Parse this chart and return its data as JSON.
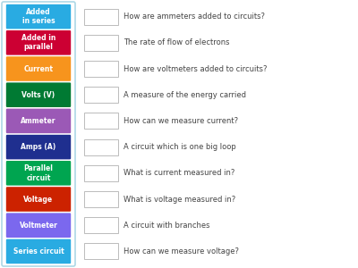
{
  "labels": [
    {
      "text": "Added\nin series",
      "color": "#29ABE2"
    },
    {
      "text": "Added in\nparallel",
      "color": "#CC0033"
    },
    {
      "text": "Current",
      "color": "#F7941D"
    },
    {
      "text": "Volts (V)",
      "color": "#007A33"
    },
    {
      "text": "Ammeter",
      "color": "#9B59B6"
    },
    {
      "text": "Amps (A)",
      "color": "#1F2F8F"
    },
    {
      "text": "Parallel\ncircuit",
      "color": "#00A550"
    },
    {
      "text": "Voltage",
      "color": "#CC2200"
    },
    {
      "text": "Voltmeter",
      "color": "#7B68EE"
    },
    {
      "text": "Series circuit",
      "color": "#29ABE2"
    }
  ],
  "questions": [
    "How are ammeters added to circuits?",
    "The rate of flow of electrons",
    "How are voltmeters added to circuits?",
    "A measure of the energy carried",
    "How can we measure current?",
    "A circuit which is one big loop",
    "What is current measured in?",
    "What is voltage measured in?",
    "A circuit with branches",
    "How can we measure voltage?"
  ],
  "background_color": "#FFFFFF",
  "outer_border_color": "#ADD8E6",
  "label_text_color": "#FFFFFF",
  "question_text_color": "#444444",
  "answer_box_color": "#FFFFFF",
  "answer_box_border": "#BBBBBB",
  "fig_width": 4.0,
  "fig_height": 3.0,
  "dpi": 100
}
